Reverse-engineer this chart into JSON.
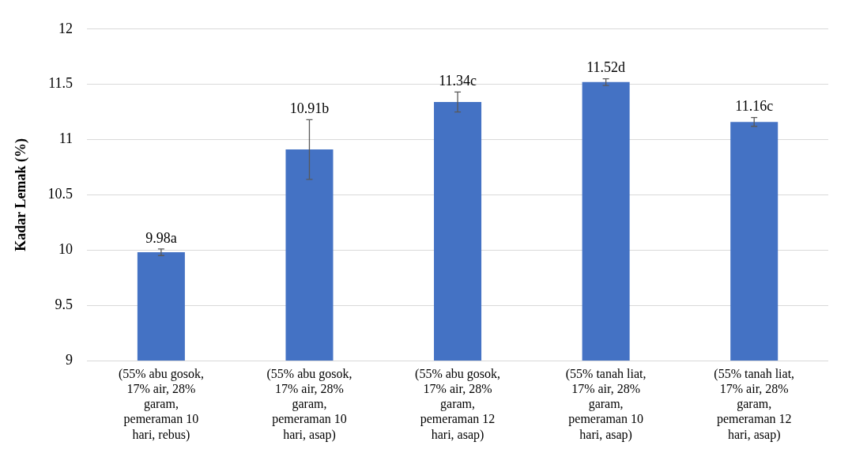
{
  "chart_data": {
    "type": "bar",
    "ylabel": "Kadar Lemak (%)",
    "categories": [
      "(55% abu gosok, 17% air, 28% garam, pemeraman 10 hari, rebus)",
      "(55% abu gosok, 17% air, 28% garam, pemeraman 10 hari, asap)",
      "(55% abu gosok, 17% air, 28% garam, pemeraman 12 hari, asap)",
      "(55% tanah liat, 17% air, 28% garam, pemeraman 10 hari, asap)",
      "(55% tanah liat, 17% air, 28% garam, pemeraman 12 hari, asap)"
    ],
    "values": [
      9.98,
      10.91,
      11.34,
      11.52,
      11.16
    ],
    "value_labels": [
      "9.98a",
      "10.91b",
      "11.34c",
      "11.52d",
      "11.16c"
    ],
    "errors": [
      0.03,
      0.27,
      0.09,
      0.03,
      0.04
    ],
    "color": "#4472c4",
    "ylim": [
      9,
      12
    ],
    "yticks": [
      9,
      9.5,
      10,
      10.5,
      11,
      11.5,
      12
    ],
    "grid": "y",
    "legend": false
  }
}
